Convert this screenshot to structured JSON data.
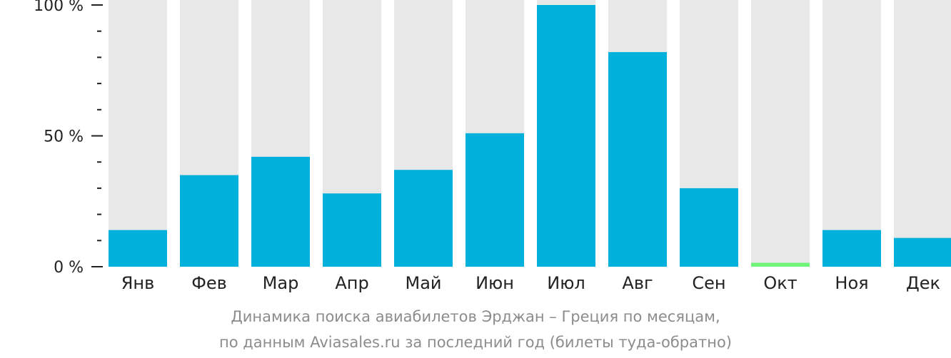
{
  "chart_data": {
    "type": "bar",
    "title": "",
    "subtitle_lines": [
      "Динамика поиска авиабилетов Эрджан – Греция по месяцам,",
      "по данным Aviasales.ru за последний год (билеты туда-обратно)"
    ],
    "xlabel": "",
    "ylabel": "",
    "categories": [
      "Янв",
      "Фев",
      "Мар",
      "Апр",
      "Май",
      "Июн",
      "Июл",
      "Авг",
      "Сен",
      "Окт",
      "Ноя",
      "Дек"
    ],
    "values": [
      14,
      35,
      42,
      28,
      37,
      51,
      100,
      82,
      30,
      1.5,
      14,
      11
    ],
    "ylim": [
      0,
      100
    ],
    "y_ticks": [
      {
        "value": 0,
        "label": "0 %"
      },
      {
        "value": 50,
        "label": "50 %"
      },
      {
        "value": 100,
        "label": "100 %"
      }
    ],
    "minor_tick_step": 10,
    "grid": false,
    "legend": "none",
    "highlight_index": 9,
    "colors": {
      "bar": "#02b0dc",
      "highlight": "#6ef57a",
      "background_bar": "#e8e8e8",
      "axis": "#222222",
      "caption": "#8c8c8c"
    }
  }
}
